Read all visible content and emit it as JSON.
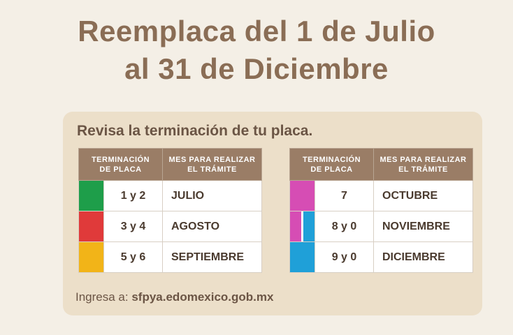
{
  "title_line1": "Reemplaca del 1 de Julio",
  "title_line2": "al 31 de Diciembre",
  "subtitle": "Revisa la terminación de tu placa.",
  "table_headers": {
    "term_line1": "TERMINACIÓN",
    "term_line2": "DE PLACA",
    "mes_line1": "MES PARA REALIZAR",
    "mes_line2": "EL TRÁMITE"
  },
  "left_rows": [
    {
      "terminacion": "1 y 2",
      "mes": "JULIO",
      "color": "#1e9e4a"
    },
    {
      "terminacion": "3 y 4",
      "mes": "AGOSTO",
      "color": "#e03a3a"
    },
    {
      "terminacion": "5 y 6",
      "mes": "SEPTIEMBRE",
      "color": "#f2b418"
    }
  ],
  "right_rows": [
    {
      "terminacion": "7",
      "mes": "OCTUBRE",
      "color": "#d64db4"
    },
    {
      "terminacion": "8 y 0",
      "mes": "NOVIEMBRE",
      "color": "#d64db4",
      "color2": "#1fa0d8"
    },
    {
      "terminacion": "9 y 0",
      "mes": "DICIEMBRE",
      "color": "#1fa0d8"
    }
  ],
  "footer": {
    "label": "Ingresa a:",
    "url": "sfpya.edomexico.gob.mx"
  }
}
